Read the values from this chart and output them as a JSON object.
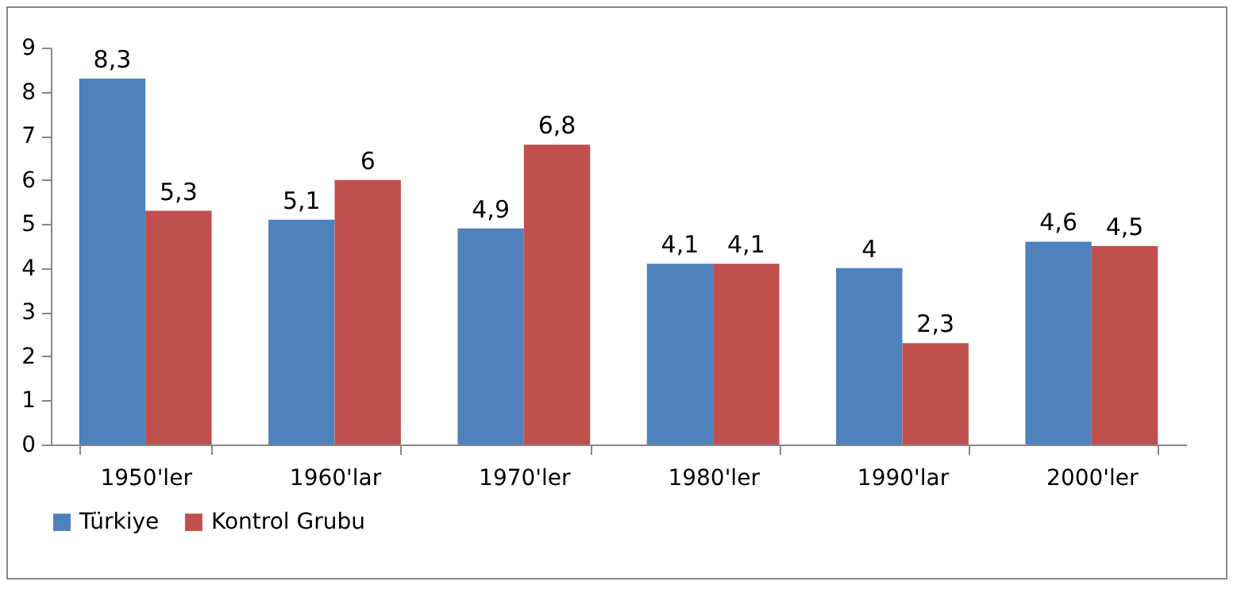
{
  "chart_data": {
    "type": "bar",
    "categories": [
      "1950'ler",
      "1960'lar",
      "1970'ler",
      "1980'ler",
      "1990'lar",
      "2000'ler"
    ],
    "series": [
      {
        "name": "Türkiye",
        "color": "#4f81bd",
        "values": [
          8.3,
          5.1,
          4.9,
          4.1,
          4,
          4.6
        ],
        "value_labels": [
          "8,3",
          "5,1",
          "4,9",
          "4,1",
          "4",
          "4,6"
        ]
      },
      {
        "name": "Kontrol Grubu",
        "color": "#c0504d",
        "values": [
          5.3,
          6,
          6.8,
          4.1,
          2.3,
          4.5
        ],
        "value_labels": [
          "5,3",
          "6",
          "6,8",
          "4,1",
          "2,3",
          "4,5"
        ]
      }
    ],
    "ylim": [
      0,
      9
    ],
    "yticks": [
      0,
      1,
      2,
      3,
      4,
      5,
      6,
      7,
      8,
      9
    ],
    "grid": false,
    "legend": "bottom"
  }
}
